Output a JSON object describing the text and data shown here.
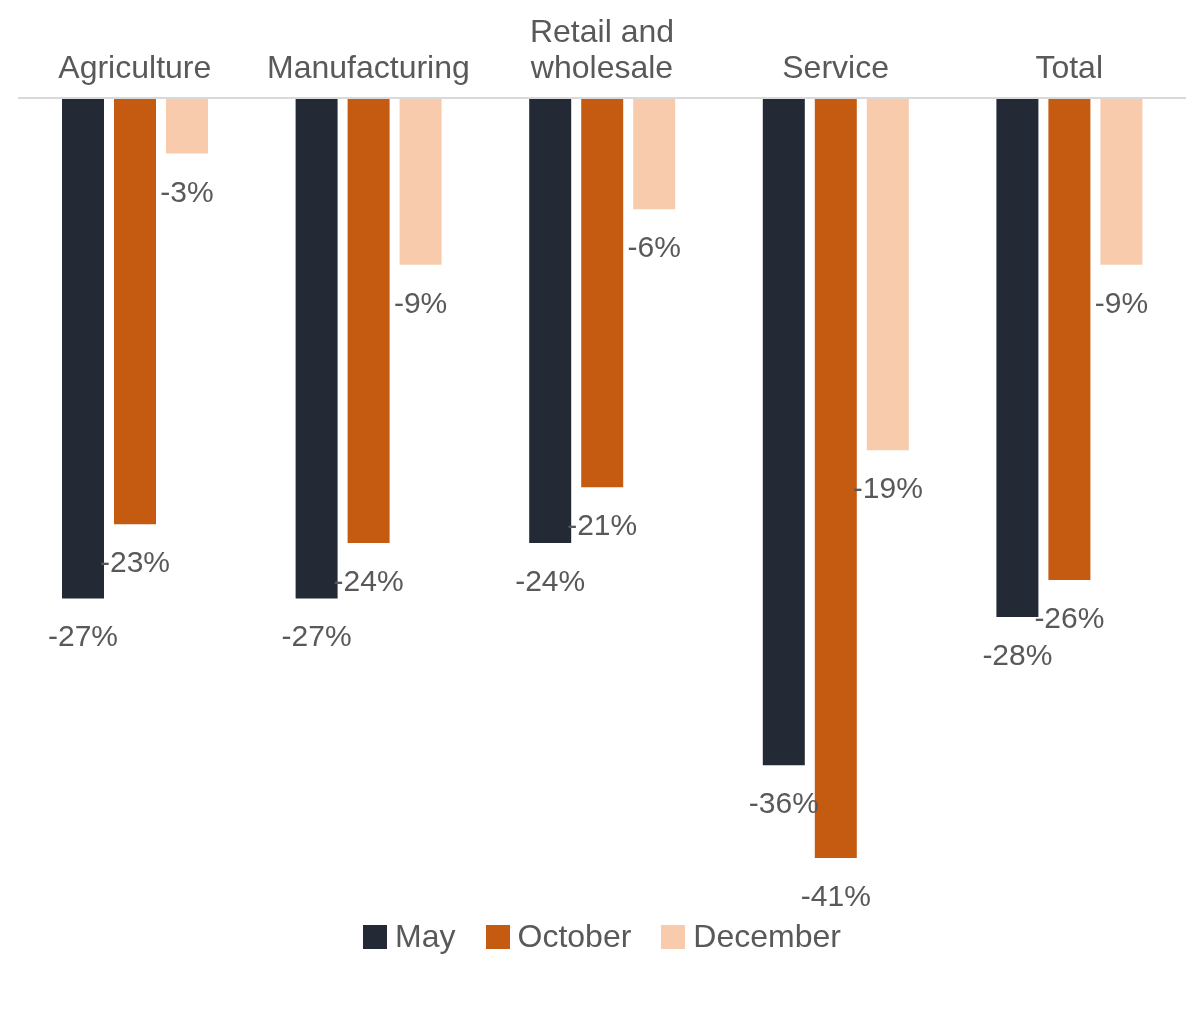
{
  "chart_data": {
    "type": "bar",
    "categories": [
      "Agriculture",
      "Manufacturing",
      "Retail and wholesale",
      "Service",
      "Total"
    ],
    "series": [
      {
        "name": "May",
        "color": "#232a35",
        "values": [
          -27,
          -27,
          -24,
          -36,
          -28
        ],
        "value_labels": [
          "-27%",
          "-27%",
          "-24%",
          "-36%",
          "-28%"
        ]
      },
      {
        "name": "October",
        "color": "#c55a11",
        "values": [
          -23,
          -24,
          -21,
          -41,
          -26
        ],
        "value_labels": [
          "-23%",
          "-24%",
          "-21%",
          "-41%",
          "-26%"
        ]
      },
      {
        "name": "December",
        "color": "#f8cbad",
        "values": [
          -3,
          -9,
          -6,
          -19,
          -9
        ],
        "value_labels": [
          "-3%",
          "-9%",
          "-6%",
          "-19%",
          "-9%"
        ]
      }
    ],
    "legend": "bottom",
    "grid": false
  }
}
